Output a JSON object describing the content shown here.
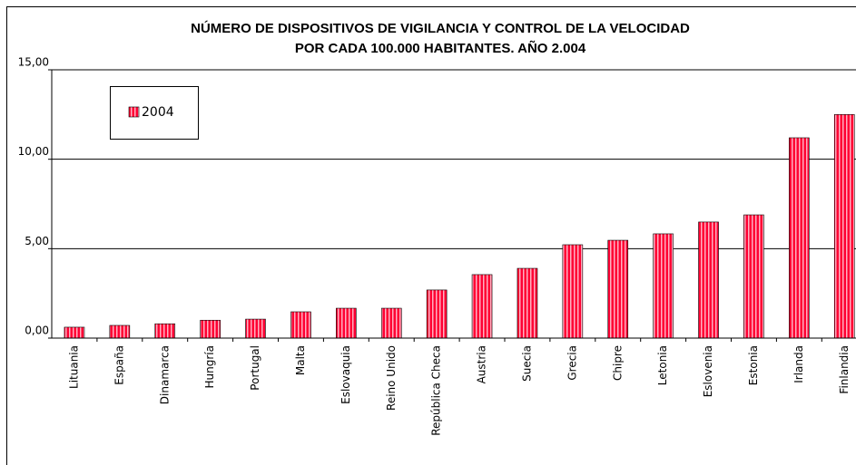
{
  "chart_data": {
    "type": "bar",
    "title": [
      "NÚMERO DE DISPOSITIVOS DE VIGILANCIA Y CONTROL DE LA VELOCIDAD",
      "POR CADA 100.000 HABITANTES. AÑO 2.004"
    ],
    "categories": [
      "Lituania",
      "España",
      "Dinamarca",
      "Hungría",
      "Portugal",
      "Malta",
      "Eslovaquia",
      "Reino Unido",
      "República Checa",
      "Austria",
      "Suecia",
      "Grecia",
      "Chipre",
      "Letonia",
      "Eslovenia",
      "Estonia",
      "Irlanda",
      "Finlandia"
    ],
    "series": [
      {
        "name": "2004",
        "color": "#ff0033",
        "values": [
          0.61,
          0.71,
          0.8,
          1.0,
          1.06,
          1.47,
          1.67,
          1.67,
          2.69,
          3.55,
          3.9,
          5.22,
          5.47,
          5.83,
          6.49,
          6.89,
          11.2,
          12.5
        ]
      }
    ],
    "ylim": [
      0,
      15
    ],
    "yticks": [
      {
        "value": 0,
        "label": "0,00"
      },
      {
        "value": 5,
        "label": "5,00"
      },
      {
        "value": 10,
        "label": "10,00"
      },
      {
        "value": 15,
        "label": "15,00"
      }
    ],
    "grid": true,
    "legend": "top-left"
  }
}
